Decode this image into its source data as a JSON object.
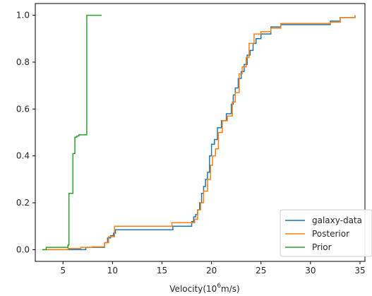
{
  "chart_data": {
    "type": "line",
    "step": true,
    "xlabel_prefix": "Velocity(10",
    "xlabel_exp": "6",
    "xlabel_suffix": "m/s)",
    "ylabel": "",
    "xlim": [
      2.2,
      35.5
    ],
    "ylim": [
      -0.05,
      1.05
    ],
    "x_ticks": [
      5,
      10,
      15,
      20,
      25,
      30,
      35
    ],
    "y_ticks": [
      0.0,
      0.2,
      0.4,
      0.6,
      0.8,
      1.0
    ],
    "x_tick_labels": [
      "5",
      "10",
      "15",
      "20",
      "25",
      "30",
      "35"
    ],
    "y_tick_labels": [
      "0.0",
      "0.2",
      "0.4",
      "0.6",
      "0.8",
      "1.0"
    ],
    "legend_position": "lower-right",
    "grid": false,
    "series": [
      {
        "name": "galaxy-data",
        "color": "#1f77b4",
        "points": [
          [
            3.0,
            0.0
          ],
          [
            4.0,
            0.0
          ],
          [
            5.5,
            0.0
          ],
          [
            6.5,
            0.0
          ],
          [
            7.3,
            0.01
          ],
          [
            8.9,
            0.01
          ],
          [
            9.2,
            0.03
          ],
          [
            9.5,
            0.05
          ],
          [
            9.8,
            0.06
          ],
          [
            10.1,
            0.07
          ],
          [
            10.3,
            0.085
          ],
          [
            16.1,
            0.1
          ],
          [
            18.0,
            0.12
          ],
          [
            18.2,
            0.14
          ],
          [
            18.4,
            0.15
          ],
          [
            18.6,
            0.17
          ],
          [
            18.8,
            0.2
          ],
          [
            19.0,
            0.24
          ],
          [
            19.2,
            0.27
          ],
          [
            19.4,
            0.3
          ],
          [
            19.6,
            0.33
          ],
          [
            19.8,
            0.4
          ],
          [
            20.0,
            0.45
          ],
          [
            20.3,
            0.47
          ],
          [
            20.6,
            0.52
          ],
          [
            21.0,
            0.55
          ],
          [
            21.5,
            0.58
          ],
          [
            22.0,
            0.62
          ],
          [
            22.2,
            0.66
          ],
          [
            22.4,
            0.69
          ],
          [
            22.7,
            0.73
          ],
          [
            23.0,
            0.76
          ],
          [
            23.3,
            0.79
          ],
          [
            23.6,
            0.83
          ],
          [
            23.9,
            0.85
          ],
          [
            24.2,
            0.88
          ],
          [
            24.5,
            0.9
          ],
          [
            25.0,
            0.92
          ],
          [
            26.0,
            0.95
          ],
          [
            27.0,
            0.96
          ],
          [
            32.0,
            0.975
          ],
          [
            33.0,
            0.99
          ],
          [
            34.5,
            1.0
          ]
        ]
      },
      {
        "name": "Posterior",
        "color": "#ff7f0e",
        "points": [
          [
            2.9,
            0.0
          ],
          [
            5.5,
            0.005
          ],
          [
            6.8,
            0.01
          ],
          [
            8.0,
            0.012
          ],
          [
            9.2,
            0.03
          ],
          [
            9.6,
            0.055
          ],
          [
            10.2,
            0.1
          ],
          [
            16.0,
            0.115
          ],
          [
            18.3,
            0.13
          ],
          [
            18.6,
            0.17
          ],
          [
            18.9,
            0.2
          ],
          [
            19.2,
            0.25
          ],
          [
            19.6,
            0.3
          ],
          [
            19.9,
            0.36
          ],
          [
            20.1,
            0.4
          ],
          [
            20.4,
            0.43
          ],
          [
            20.7,
            0.5
          ],
          [
            21.1,
            0.55
          ],
          [
            21.6,
            0.57
          ],
          [
            22.1,
            0.63
          ],
          [
            22.4,
            0.67
          ],
          [
            22.8,
            0.75
          ],
          [
            23.1,
            0.78
          ],
          [
            23.5,
            0.82
          ],
          [
            23.8,
            0.88
          ],
          [
            24.3,
            0.92
          ],
          [
            25.0,
            0.93
          ],
          [
            26.0,
            0.945
          ],
          [
            27.0,
            0.965
          ],
          [
            32.0,
            0.97
          ],
          [
            33.0,
            0.99
          ],
          [
            34.5,
            1.0
          ]
        ]
      },
      {
        "name": "Prior",
        "color": "#2ca02c",
        "points": [
          [
            2.9,
            0.0
          ],
          [
            3.3,
            0.01
          ],
          [
            5.4,
            0.01
          ],
          [
            5.5,
            0.02
          ],
          [
            5.6,
            0.24
          ],
          [
            6.0,
            0.41
          ],
          [
            6.2,
            0.48
          ],
          [
            6.4,
            0.485
          ],
          [
            6.6,
            0.49
          ],
          [
            7.4,
            1.0
          ],
          [
            8.9,
            1.0
          ]
        ]
      }
    ]
  }
}
